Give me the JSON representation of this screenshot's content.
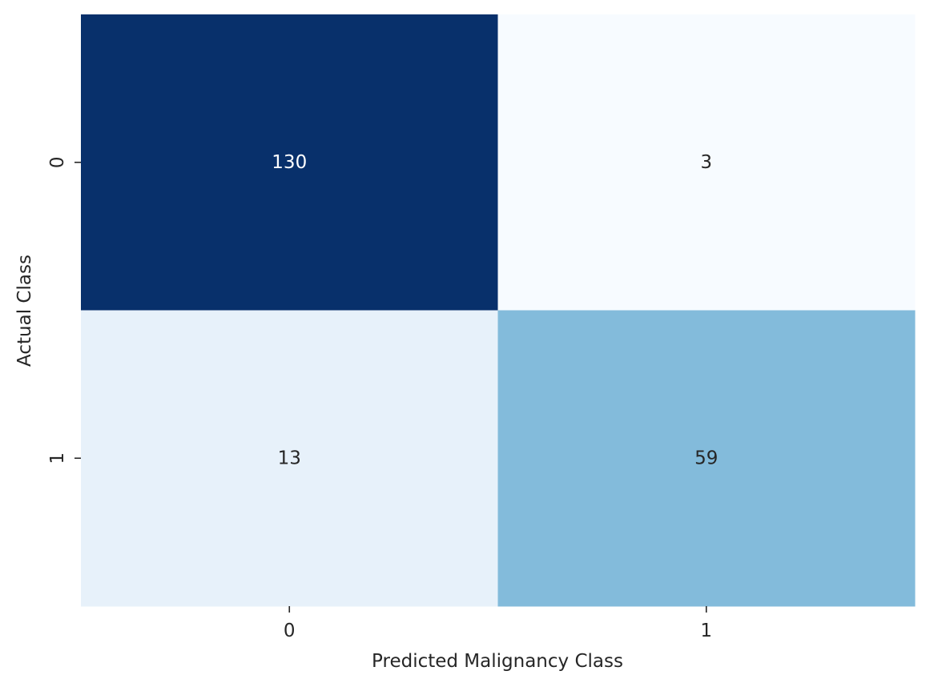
{
  "chart_data": {
    "type": "heatmap",
    "title": "",
    "xlabel": "Predicted Malignancy Class",
    "ylabel": "Actual Class",
    "x_categories": [
      "0",
      "1"
    ],
    "y_categories": [
      "0",
      "1"
    ],
    "values": [
      [
        130,
        3
      ],
      [
        13,
        59
      ]
    ],
    "colormap": "Blues",
    "colorbar": false,
    "annotations": true,
    "colors": {
      "max": "#08306b",
      "min": "#f7fbff",
      "text_dark": "#262626",
      "text_light": "#ffffff"
    }
  }
}
